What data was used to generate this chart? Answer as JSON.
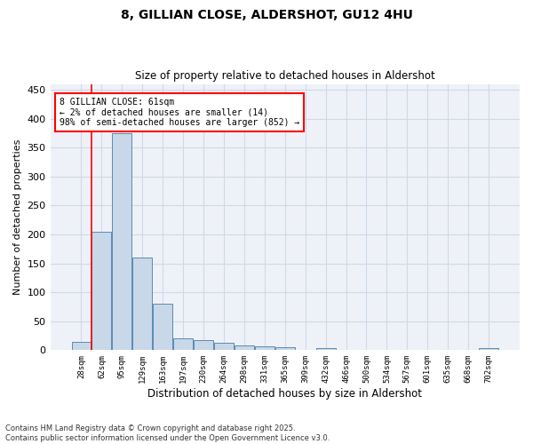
{
  "title_line1": "8, GILLIAN CLOSE, ALDERSHOT, GU12 4HU",
  "title_line2": "Size of property relative to detached houses in Aldershot",
  "xlabel": "Distribution of detached houses by size in Aldershot",
  "ylabel": "Number of detached properties",
  "categories": [
    "28sqm",
    "62sqm",
    "95sqm",
    "129sqm",
    "163sqm",
    "197sqm",
    "230sqm",
    "264sqm",
    "298sqm",
    "331sqm",
    "365sqm",
    "399sqm",
    "432sqm",
    "466sqm",
    "500sqm",
    "534sqm",
    "567sqm",
    "601sqm",
    "635sqm",
    "668sqm",
    "702sqm"
  ],
  "values": [
    15,
    205,
    375,
    160,
    80,
    20,
    18,
    13,
    8,
    6,
    5,
    0,
    3,
    0,
    0,
    0,
    0,
    0,
    0,
    0,
    4
  ],
  "bar_color": "#c8d8e8",
  "bar_edge_color": "#5a8ab5",
  "grid_color": "#d0d8e8",
  "bg_color": "#eef2f8",
  "annotation_text": "8 GILLIAN CLOSE: 61sqm\n← 2% of detached houses are smaller (14)\n98% of semi-detached houses are larger (852) →",
  "footnote": "Contains HM Land Registry data © Crown copyright and database right 2025.\nContains public sector information licensed under the Open Government Licence v3.0.",
  "ylim": [
    0,
    460
  ],
  "yticks": [
    0,
    50,
    100,
    150,
    200,
    250,
    300,
    350,
    400,
    450
  ],
  "property_line_x": 0.5
}
